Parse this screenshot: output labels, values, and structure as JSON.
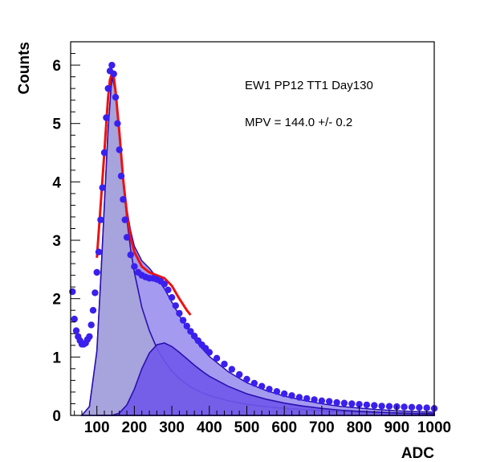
{
  "chart_data": {
    "type": "scatter",
    "xlabel": "ADC",
    "ylabel": "Counts",
    "xlim": [
      30,
      1000
    ],
    "ylim": [
      0,
      6.4
    ],
    "x_ticks": [
      100,
      200,
      300,
      400,
      500,
      600,
      700,
      800,
      900,
      1000
    ],
    "y_ticks": [
      0,
      1,
      2,
      3,
      4,
      5,
      6
    ],
    "annotations": [
      "EW1 PP12 TT1 Day130",
      "MPV = 144.0 +/- 0.2"
    ],
    "colors": {
      "points": "#3a20ee",
      "fit": "#ee1111",
      "landau_fill": "#a7a3dc",
      "landau_line": "#2a10b0",
      "second_fill": "#7058ea",
      "sum_fill": "#a49af0",
      "frame": "#000000"
    },
    "series": [
      {
        "kind": "data_points",
        "x": [
          35,
          40,
          45,
          50,
          55,
          60,
          65,
          70,
          75,
          80,
          85,
          90,
          95,
          100,
          105,
          110,
          115,
          120,
          125,
          130,
          135,
          140,
          145,
          150,
          155,
          160,
          165,
          170,
          175,
          180,
          190,
          200,
          210,
          220,
          230,
          240,
          250,
          260,
          270,
          280,
          290,
          300,
          310,
          320,
          330,
          340,
          350,
          360,
          370,
          380,
          390,
          400,
          420,
          440,
          460,
          480,
          500,
          520,
          540,
          560,
          580,
          600,
          620,
          640,
          660,
          680,
          700,
          720,
          740,
          760,
          780,
          800,
          820,
          840,
          860,
          880,
          900,
          920,
          940,
          960,
          980,
          1000
        ],
        "y": [
          2.12,
          1.65,
          1.45,
          1.35,
          1.28,
          1.22,
          1.22,
          1.24,
          1.3,
          1.35,
          1.55,
          1.8,
          2.1,
          2.45,
          2.8,
          3.35,
          3.9,
          4.5,
          5.1,
          5.6,
          5.9,
          6.0,
          5.85,
          5.45,
          5.0,
          4.55,
          4.1,
          3.7,
          3.35,
          3.05,
          2.75,
          2.55,
          2.45,
          2.4,
          2.37,
          2.35,
          2.35,
          2.33,
          2.3,
          2.25,
          2.15,
          2.02,
          1.88,
          1.75,
          1.63,
          1.53,
          1.44,
          1.36,
          1.28,
          1.21,
          1.15,
          1.08,
          0.98,
          0.88,
          0.79,
          0.7,
          0.62,
          0.55,
          0.5,
          0.45,
          0.41,
          0.37,
          0.34,
          0.31,
          0.29,
          0.27,
          0.25,
          0.24,
          0.22,
          0.21,
          0.2,
          0.19,
          0.18,
          0.17,
          0.16,
          0.155,
          0.15,
          0.145,
          0.14,
          0.135,
          0.13,
          0.12
        ]
      },
      {
        "kind": "fit_curve",
        "x": [
          100,
          110,
          120,
          125,
          130,
          135,
          140,
          145,
          150,
          160,
          170,
          180,
          190,
          200,
          220,
          240,
          260,
          280,
          300,
          320,
          340,
          350
        ],
        "y": [
          2.7,
          3.6,
          4.5,
          5.0,
          5.45,
          5.75,
          5.85,
          5.8,
          5.55,
          4.85,
          4.05,
          3.45,
          3.05,
          2.8,
          2.55,
          2.45,
          2.4,
          2.35,
          2.22,
          2.0,
          1.8,
          1.72
        ]
      },
      {
        "kind": "landau_component",
        "x": [
          60,
          80,
          100,
          110,
          120,
          130,
          140,
          150,
          160,
          170,
          180,
          190,
          200,
          220,
          240,
          260,
          280,
          300,
          320,
          340,
          360,
          380,
          400,
          450,
          500,
          550,
          600,
          650,
          700,
          750,
          800,
          850,
          900,
          950,
          1000
        ],
        "y": [
          0.0,
          0.15,
          1.1,
          2.3,
          3.6,
          4.9,
          5.8,
          5.55,
          4.8,
          4.0,
          3.35,
          2.85,
          2.45,
          1.85,
          1.45,
          1.15,
          0.93,
          0.76,
          0.63,
          0.53,
          0.45,
          0.39,
          0.34,
          0.25,
          0.19,
          0.15,
          0.12,
          0.1,
          0.08,
          0.065,
          0.055,
          0.045,
          0.04,
          0.035,
          0.03
        ]
      },
      {
        "kind": "second_component",
        "x": [
          100,
          140,
          160,
          180,
          200,
          220,
          240,
          260,
          280,
          300,
          320,
          340,
          360,
          380,
          400,
          450,
          500,
          550,
          600,
          650,
          700,
          750,
          800,
          850,
          900,
          950,
          1000
        ],
        "y": [
          0.0,
          0.0,
          0.04,
          0.18,
          0.45,
          0.8,
          1.07,
          1.21,
          1.24,
          1.18,
          1.08,
          0.97,
          0.86,
          0.76,
          0.67,
          0.5,
          0.37,
          0.28,
          0.21,
          0.16,
          0.12,
          0.09,
          0.07,
          0.055,
          0.04,
          0.03,
          0.025
        ]
      }
    ]
  }
}
